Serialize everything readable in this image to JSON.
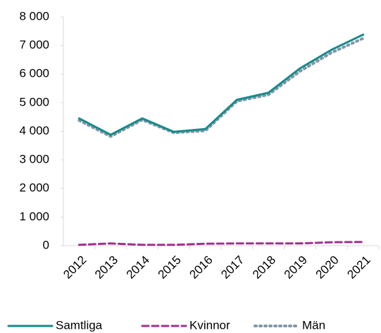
{
  "chart_data": {
    "type": "line",
    "categories": [
      "2012",
      "2013",
      "2014",
      "2015",
      "2016",
      "2017",
      "2018",
      "2019",
      "2020",
      "2021"
    ],
    "series": [
      {
        "name": "Samtliga",
        "color": "#178a8a",
        "dash": "solid",
        "values": [
          4450,
          3880,
          4450,
          3980,
          4080,
          5100,
          5350,
          6200,
          6850,
          7380
        ]
      },
      {
        "name": "Kvinnor",
        "color": "#a0318f",
        "dash": "dashed",
        "values": [
          30,
          80,
          30,
          30,
          70,
          80,
          80,
          80,
          120,
          130
        ]
      },
      {
        "name": "Män",
        "color": "#7f97a8",
        "dash": "dotted",
        "values": [
          4380,
          3820,
          4400,
          3950,
          4020,
          5050,
          5280,
          6100,
          6750,
          7250
        ]
      }
    ],
    "ylim": [
      0,
      8000
    ],
    "yticks": [
      {
        "value": 0,
        "label": "0"
      },
      {
        "value": 1000,
        "label": "1 000"
      },
      {
        "value": 2000,
        "label": "2 000"
      },
      {
        "value": 3000,
        "label": "3 000"
      },
      {
        "value": 4000,
        "label": "4 000"
      },
      {
        "value": 5000,
        "label": "5 000"
      },
      {
        "value": 6000,
        "label": "6 000"
      },
      {
        "value": 7000,
        "label": "7 000"
      },
      {
        "value": 8000,
        "label": "8 000"
      }
    ],
    "legend": "bottom"
  }
}
